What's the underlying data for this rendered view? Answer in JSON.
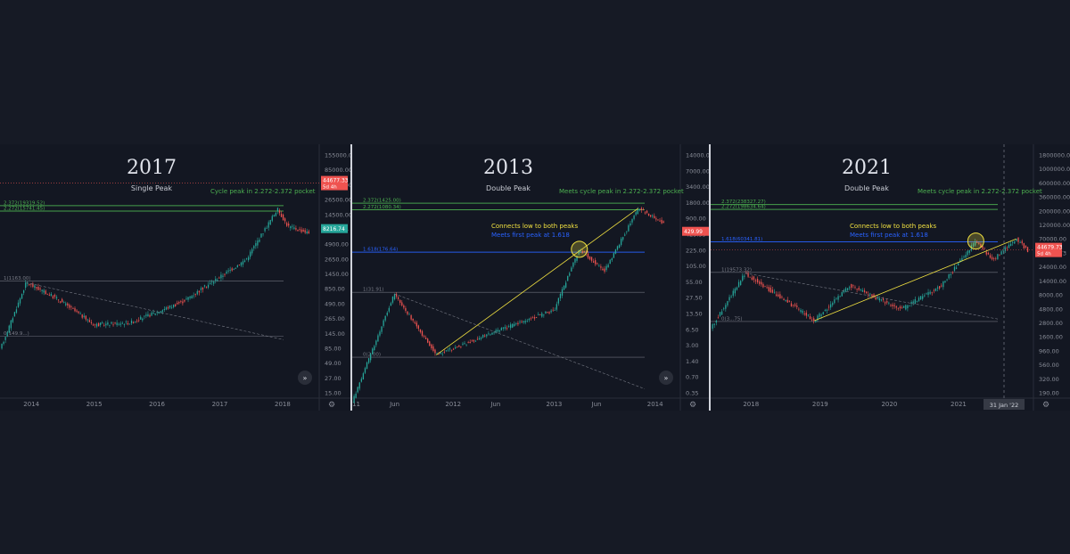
{
  "colors": {
    "bg": "#131722",
    "page": "#161a25",
    "grid": "#1f2330",
    "axis": "#8a8e99",
    "green": "#4caf50",
    "blue": "#2962ff",
    "yellow": "#f0e040",
    "up": "#26a69a",
    "down": "#ef5350",
    "fib": "#787b86"
  },
  "panels": [
    {
      "title": "2017",
      "subtitle": "Single Peak",
      "y_scale": "log",
      "y_ticks": [
        "155000.00",
        "85000.00",
        "48000.00",
        "26500.00",
        "14500.00",
        "8216.74",
        "4900.00",
        "2650.00",
        "1450.00",
        "850.00",
        "490.00",
        "265.00",
        "145.00",
        "85.00",
        "49.00",
        "27.00",
        "15.00"
      ],
      "x_ticks": [
        "2014",
        "2015",
        "2016",
        "2017",
        "2018"
      ],
      "price_tag": {
        "value": "44677.33",
        "time": "5d 4h"
      },
      "last_price": "8216.74",
      "fib_levels": [
        {
          "label": "2.372(19319.52)",
          "value": 19319.52
        },
        {
          "label": "2.272(15741.45)",
          "value": 15741.45
        },
        {
          "label": "1(1163.00)",
          "value": 1163.0
        },
        {
          "label": "0(149.9...)",
          "value": 150
        }
      ],
      "annotations": [
        {
          "text": "Cycle peak in 2.272-2.372 pocket",
          "color": "green"
        }
      ]
    },
    {
      "title": "2013",
      "subtitle": "Double Peak",
      "y_scale": "log",
      "y_ticks": [
        "14000.00",
        "7000.00",
        "3400.00",
        "1800.00",
        "900.00",
        "429.99",
        "225.00",
        "105.00",
        "55.00",
        "27.50",
        "13.50",
        "6.50",
        "3.00",
        "1.40",
        "0.70",
        "0.35"
      ],
      "x_ticks": [
        "2011",
        "Jun",
        "2012",
        "Jun",
        "2013",
        "Jun",
        "2014"
      ],
      "last_price": "429.99",
      "fib_levels": [
        {
          "label": "2.372(1425.00)",
          "value": 1425.0
        },
        {
          "label": "2.272(1080.34)",
          "value": 1080.34
        },
        {
          "label": "1.618(176.64)",
          "value": 176.64
        },
        {
          "label": "1(31.91)",
          "value": 31.91
        },
        {
          "label": "0(2.00)",
          "value": 2.0
        }
      ],
      "annotations": [
        {
          "text": "Meets cycle peak in 2.272-2.372 pocket",
          "color": "green"
        },
        {
          "text": "Connects low to both peaks",
          "color": "yellow"
        },
        {
          "text": "Meets first peak at 1.618",
          "color": "blue"
        }
      ]
    },
    {
      "title": "2021",
      "subtitle": "Double Peak",
      "y_scale": "log",
      "y_ticks": [
        "1800000.00",
        "1000000.00",
        "600000.00",
        "360000.00",
        "200000.00",
        "120000.00",
        "70000.00",
        "44679.73",
        "24000.00",
        "14000.00",
        "8000.00",
        "4800.00",
        "2800.00",
        "1600.00",
        "960.00",
        "560.00",
        "320.00",
        "190.00"
      ],
      "x_ticks": [
        "2018",
        "2019",
        "2020",
        "2021"
      ],
      "date_tag": "31 Jan '22",
      "price_tag": {
        "value": "44679.73",
        "time": "5d 4h"
      },
      "fib_levels": [
        {
          "label": "2.372(238327.27)",
          "value": 238327.27
        },
        {
          "label": "2.272(198634.64)",
          "value": 198634.64
        },
        {
          "label": "1.618(60341.81)",
          "value": 60341.81
        },
        {
          "label": "1(19573.32)",
          "value": 19573.32
        },
        {
          "label": "0(3...75)",
          "value": 3200
        }
      ],
      "annotations": [
        {
          "text": "Meets cycle peak in 2.272-2.372 pocket",
          "color": "green"
        },
        {
          "text": "Connects low to both peaks",
          "color": "yellow"
        },
        {
          "text": "Meets first peak at 1.618",
          "color": "blue"
        }
      ]
    }
  ],
  "chart_data": [
    {
      "type": "candlestick",
      "title": "2017",
      "subtitle": "Single Peak",
      "x_range": [
        "2013-07",
        "2018-08"
      ],
      "y_range": [
        15,
        155000
      ],
      "log_scale": true,
      "series": [
        {
          "x": [
            "2013-07",
            "2013-12",
            "2014-06",
            "2015-01",
            "2015-08",
            "2016-06",
            "2017-06",
            "2017-12",
            "2018-02",
            "2018-06"
          ],
          "y": [
            90,
            1100,
            600,
            230,
            250,
            550,
            2600,
            17000,
            9000,
            7000
          ]
        }
      ]
    },
    {
      "type": "candlestick",
      "title": "2013",
      "subtitle": "Double Peak",
      "x_range": [
        "2011-01",
        "2014-04"
      ],
      "y_range": [
        0.35,
        14000
      ],
      "log_scale": true,
      "series": [
        {
          "x": [
            "2011-01",
            "2011-06",
            "2011-11",
            "2012-06",
            "2013-01",
            "2013-04",
            "2013-07",
            "2013-11",
            "2014-02"
          ],
          "y": [
            0.3,
            30,
            2.2,
            6,
            15,
            200,
            80,
            1150,
            600
          ]
        }
      ]
    },
    {
      "type": "candlestick",
      "title": "2021",
      "subtitle": "Double Peak",
      "x_range": [
        "2017-06",
        "2022-02"
      ],
      "y_range": [
        190,
        1800000
      ],
      "log_scale": true,
      "series": [
        {
          "x": [
            "2017-06",
            "2017-12",
            "2018-12",
            "2019-06",
            "2020-03",
            "2020-10",
            "2021-04",
            "2021-07",
            "2021-11",
            "2022-01"
          ],
          "y": [
            2500,
            19000,
            3300,
            12000,
            5000,
            12000,
            62000,
            31000,
            67000,
            44000
          ]
        }
      ]
    }
  ]
}
